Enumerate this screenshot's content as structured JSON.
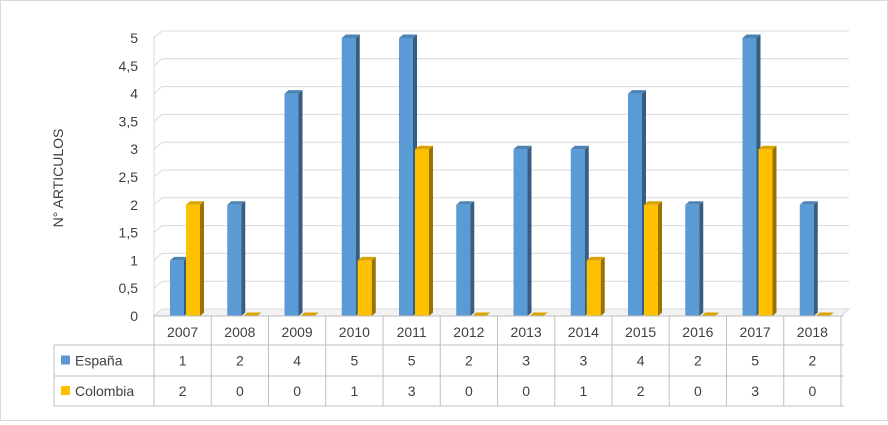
{
  "chart_data": {
    "type": "bar",
    "title": "",
    "xlabel": "",
    "ylabel": "N° ARTICULOS",
    "ylim": [
      0,
      5
    ],
    "yticks": [
      "0",
      "0,5",
      "1",
      "1,5",
      "2",
      "2,5",
      "3",
      "3,5",
      "4",
      "4,5",
      "5"
    ],
    "grid": true,
    "legend": "data-table",
    "categories": [
      "2007",
      "2008",
      "2009",
      "2010",
      "2011",
      "2012",
      "2013",
      "2014",
      "2015",
      "2016",
      "2017",
      "2018"
    ],
    "series": [
      {
        "name": "España",
        "values": [
          1,
          2,
          4,
          5,
          5,
          2,
          3,
          3,
          4,
          2,
          5,
          2
        ],
        "color": "#5b9bd5"
      },
      {
        "name": "Colombia",
        "values": [
          2,
          0,
          0,
          1,
          3,
          0,
          0,
          1,
          2,
          0,
          3,
          0
        ],
        "color": "#ffc000"
      }
    ]
  }
}
